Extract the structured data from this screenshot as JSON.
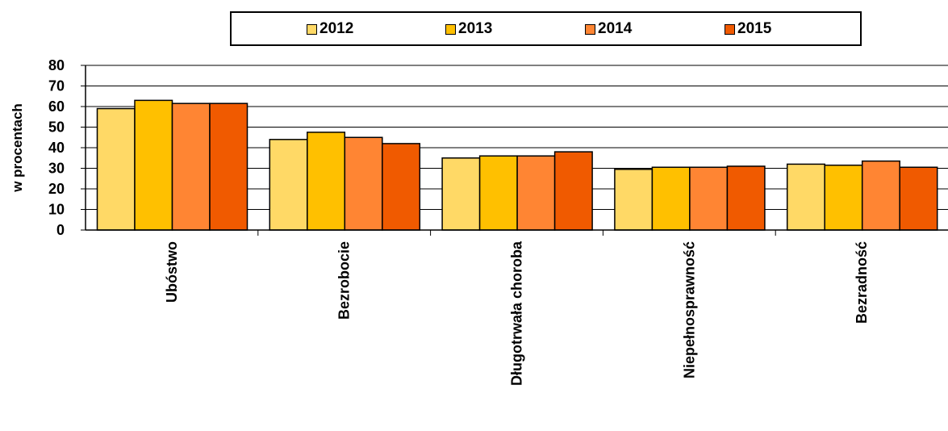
{
  "chart_data": {
    "type": "bar",
    "categories": [
      "Ubóstwo",
      "Bezrobocie",
      "Długotrwała choroba",
      "Niepełnosprawność",
      "Bezradność"
    ],
    "series": [
      {
        "name": "2012",
        "color": "#FFD966",
        "values": [
          59,
          44,
          35,
          29.5,
          32
        ]
      },
      {
        "name": "2013",
        "color": "#FFC000",
        "values": [
          63,
          47.5,
          36,
          30.5,
          31.5
        ]
      },
      {
        "name": "2014",
        "color": "#FF8533",
        "values": [
          61.5,
          45,
          36,
          30.5,
          33.5
        ]
      },
      {
        "name": "2015",
        "color": "#F05A00",
        "values": [
          61.5,
          42,
          38,
          31,
          30.5
        ]
      }
    ],
    "title": "",
    "xlabel": "",
    "ylabel": "w procentach",
    "ylim": [
      0,
      80
    ],
    "yticks": [
      "0",
      "10",
      "20",
      "30",
      "40",
      "50",
      "60",
      "70",
      "80"
    ],
    "grid": true,
    "legend_position": "top"
  }
}
